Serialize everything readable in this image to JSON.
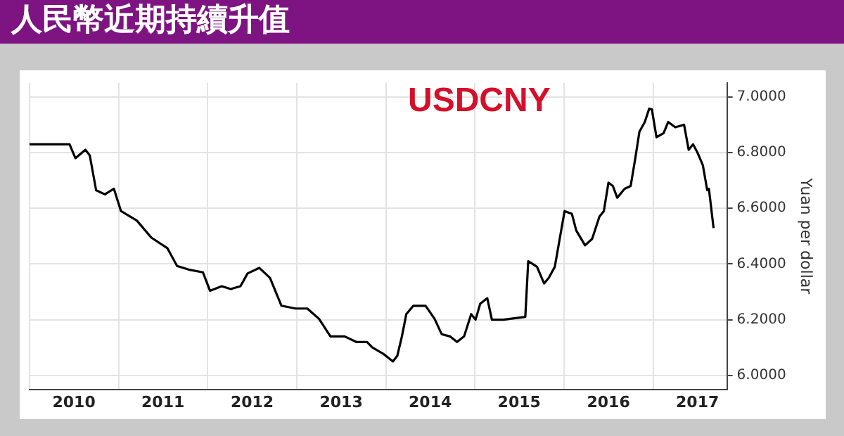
{
  "chart_data": {
    "type": "line",
    "title": "人民幣近期持續升值",
    "subtitle": "USDCNY",
    "ylabel": "Yuan per dollar",
    "color": "#000000",
    "grid": true,
    "legend": false,
    "marker": "none",
    "line_style": "solid",
    "xlim": [
      "2010-01-01",
      "2017-10-31"
    ],
    "xticks": [
      {
        "value": "2010-01-01",
        "label": null
      },
      {
        "value": "2010-07-02",
        "label": "2010"
      },
      {
        "value": "2011-01-01",
        "label": null
      },
      {
        "value": "2011-07-02",
        "label": "2011"
      },
      {
        "value": "2012-01-01",
        "label": null
      },
      {
        "value": "2012-07-02",
        "label": "2012"
      },
      {
        "value": "2013-01-01",
        "label": null
      },
      {
        "value": "2013-07-02",
        "label": "2013"
      },
      {
        "value": "2014-01-01",
        "label": null
      },
      {
        "value": "2014-07-02",
        "label": "2014"
      },
      {
        "value": "2015-01-01",
        "label": null
      },
      {
        "value": "2015-07-02",
        "label": "2015"
      },
      {
        "value": "2016-01-01",
        "label": null
      },
      {
        "value": "2016-07-02",
        "label": "2016"
      },
      {
        "value": "2017-01-01",
        "label": null
      },
      {
        "value": "2017-07-02",
        "label": "2017"
      }
    ],
    "ylim": [
      5.95,
      7.05
    ],
    "yticks": [
      {
        "value": 6,
        "label": "6.0000"
      },
      {
        "value": 6.2,
        "label": "6.2000"
      },
      {
        "value": 6.4,
        "label": "6.4000"
      },
      {
        "value": 6.6,
        "label": "6.6000"
      },
      {
        "value": 6.8,
        "label": "6.8000"
      },
      {
        "value": 7,
        "label": "7.0000"
      }
    ],
    "x": [
      "2010-01-01",
      "2010-06-14",
      "2010-07-08",
      "2010-08-18",
      "2010-09-05",
      "2010-10-01",
      "2010-11-06",
      "2010-12-13",
      "2011-01-11",
      "2011-03-17",
      "2011-05-15",
      "2011-07-20",
      "2011-08-29",
      "2011-10-15",
      "2011-12-13",
      "2012-01-11",
      "2012-02-28",
      "2012-04-05",
      "2012-05-15",
      "2012-06-13",
      "2012-07-31",
      "2012-09-13",
      "2012-10-30",
      "2012-12-27",
      "2013-02-13",
      "2013-04-02",
      "2013-05-19",
      "2013-07-16",
      "2013-09-02",
      "2013-10-16",
      "2013-11-07",
      "2013-12-24",
      "2014-01-30",
      "2014-02-17",
      "2014-03-08",
      "2014-03-26",
      "2014-04-24",
      "2014-06-13",
      "2014-07-20",
      "2014-08-18",
      "2014-09-21",
      "2014-10-20",
      "2014-11-18",
      "2014-12-17",
      "2015-01-04",
      "2015-01-23",
      "2015-02-21",
      "2015-03-12",
      "2015-04-28",
      "2015-07-27",
      "2015-08-08",
      "2015-09-13",
      "2015-10-12",
      "2015-10-31",
      "2015-11-25",
      "2015-12-13",
      "2016-01-04",
      "2016-02-03",
      "2016-02-21",
      "2016-03-28",
      "2016-04-26",
      "2016-05-26",
      "2016-06-13",
      "2016-07-02",
      "2016-07-20",
      "2016-08-07",
      "2016-09-06",
      "2016-10-01",
      "2016-10-19",
      "2016-11-06",
      "2016-11-28",
      "2016-12-16",
      "2016-12-27",
      "2017-01-15",
      "2017-02-13",
      "2017-03-04",
      "2017-04-02",
      "2017-05-08",
      "2017-05-27",
      "2017-06-14",
      "2017-07-02",
      "2017-07-24",
      "2017-08-11",
      "2017-08-18",
      "2017-09-06"
    ],
    "values": [
      6.83,
      6.83,
      6.78,
      6.81,
      6.79,
      6.665,
      6.65,
      6.67,
      6.59,
      6.556,
      6.495,
      6.457,
      6.393,
      6.38,
      6.37,
      6.304,
      6.32,
      6.31,
      6.32,
      6.366,
      6.386,
      6.35,
      6.25,
      6.24,
      6.24,
      6.203,
      6.14,
      6.14,
      6.12,
      6.12,
      6.1,
      6.076,
      6.05,
      6.07,
      6.14,
      6.22,
      6.25,
      6.25,
      6.203,
      6.148,
      6.14,
      6.12,
      6.14,
      6.22,
      6.2,
      6.257,
      6.277,
      6.2,
      6.2,
      6.21,
      6.41,
      6.39,
      6.33,
      6.35,
      6.39,
      6.48,
      6.59,
      6.58,
      6.52,
      6.467,
      6.49,
      6.57,
      6.59,
      6.692,
      6.68,
      6.638,
      6.67,
      6.68,
      6.774,
      6.875,
      6.91,
      6.958,
      6.955,
      6.855,
      6.87,
      6.91,
      6.891,
      6.9,
      6.81,
      6.83,
      6.8,
      6.755,
      6.665,
      6.67,
      6.529
    ]
  }
}
